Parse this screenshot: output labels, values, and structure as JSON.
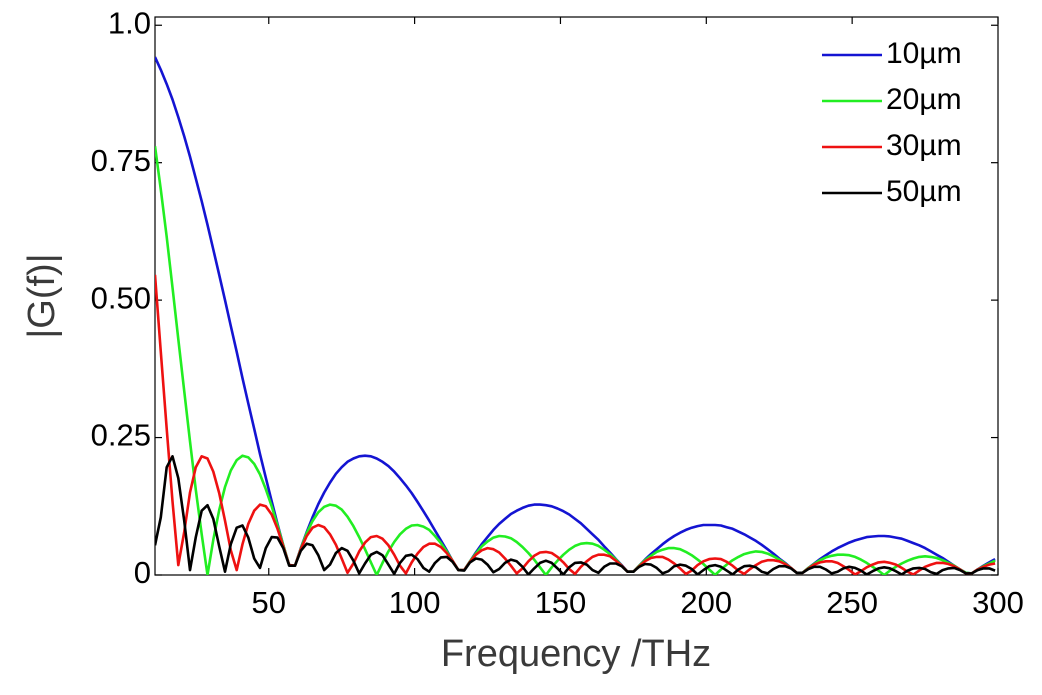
{
  "chart_data": {
    "type": "line",
    "xlabel": "Frequency /THz",
    "ylabel": "|G(f)|",
    "xlim": [
      11,
      300
    ],
    "ylim": [
      0,
      1.015
    ],
    "xticks": [
      50,
      100,
      150,
      200,
      250,
      300
    ],
    "yticks": [
      0,
      0.25,
      {
        "value": 0.5,
        "label": "0.50"
      },
      0.75,
      {
        "value": 1,
        "label": "1.0"
      }
    ],
    "legend": "upper right",
    "x": [
      11,
      13,
      15,
      17,
      19,
      21,
      23,
      25,
      27,
      29,
      31,
      33,
      35,
      37,
      39,
      41,
      43,
      45,
      47,
      49,
      51,
      53,
      55,
      57,
      59,
      61,
      63,
      65,
      67,
      69,
      71,
      73,
      75,
      77,
      79,
      81,
      83,
      85,
      87,
      89,
      91,
      93,
      95,
      97,
      99,
      101,
      103,
      105,
      107,
      109,
      111,
      113,
      115,
      117,
      119,
      121,
      123,
      125,
      127,
      129,
      131,
      133,
      135,
      137,
      139,
      141,
      143,
      145,
      147,
      149,
      151,
      153,
      155,
      157,
      159,
      161,
      163,
      165,
      167,
      169,
      171,
      173,
      175,
      177,
      179,
      181,
      183,
      185,
      187,
      189,
      191,
      193,
      195,
      197,
      199,
      201,
      203,
      205,
      207,
      209,
      211,
      213,
      215,
      217,
      219,
      221,
      223,
      225,
      227,
      229,
      231,
      233,
      235,
      237,
      239,
      241,
      243,
      245,
      247,
      249,
      251,
      253,
      255,
      257,
      259,
      261,
      263,
      265,
      267,
      269,
      271,
      273,
      275,
      277,
      279,
      281,
      283,
      285,
      287,
      289,
      291,
      293,
      295,
      297,
      299
    ],
    "series": [
      {
        "name": "10µm",
        "color": "#1414d2",
        "values": [
          0.942,
          0.919,
          0.893,
          0.865,
          0.833,
          0.798,
          0.761,
          0.721,
          0.68,
          0.637,
          0.592,
          0.546,
          0.5,
          0.453,
          0.406,
          0.358,
          0.312,
          0.266,
          0.22,
          0.177,
          0.134,
          0.093,
          0.054,
          0.018,
          0.017,
          0.049,
          0.078,
          0.105,
          0.129,
          0.15,
          0.168,
          0.184,
          0.196,
          0.206,
          0.212,
          0.216,
          0.217,
          0.216,
          0.212,
          0.206,
          0.198,
          0.188,
          0.176,
          0.163,
          0.149,
          0.133,
          0.116,
          0.099,
          0.081,
          0.063,
          0.045,
          0.026,
          0.009,
          0.009,
          0.025,
          0.041,
          0.056,
          0.069,
          0.082,
          0.093,
          0.102,
          0.111,
          0.117,
          0.122,
          0.126,
          0.128,
          0.128,
          0.127,
          0.125,
          0.121,
          0.116,
          0.11,
          0.102,
          0.094,
          0.084,
          0.074,
          0.064,
          0.052,
          0.041,
          0.029,
          0.018,
          0.006,
          0.006,
          0.017,
          0.028,
          0.038,
          0.047,
          0.056,
          0.064,
          0.071,
          0.077,
          0.082,
          0.086,
          0.089,
          0.091,
          0.091,
          0.091,
          0.09,
          0.087,
          0.084,
          0.079,
          0.074,
          0.068,
          0.062,
          0.055,
          0.047,
          0.039,
          0.03,
          0.022,
          0.013,
          0.004,
          0.004,
          0.013,
          0.021,
          0.029,
          0.036,
          0.043,
          0.049,
          0.054,
          0.059,
          0.063,
          0.066,
          0.069,
          0.07,
          0.071,
          0.071,
          0.07,
          0.068,
          0.066,
          0.062,
          0.058,
          0.054,
          0.049,
          0.043,
          0.037,
          0.031,
          0.024,
          0.017,
          0.01,
          0.004,
          0.003,
          0.01,
          0.017,
          0.023,
          0.029
        ]
      },
      {
        "name": "20µm",
        "color": "#22ee22",
        "values": [
          0.78,
          0.701,
          0.615,
          0.523,
          0.429,
          0.335,
          0.243,
          0.155,
          0.074,
          0,
          0.064,
          0.118,
          0.16,
          0.19,
          0.209,
          0.217,
          0.214,
          0.202,
          0.183,
          0.156,
          0.125,
          0.09,
          0.054,
          0.018,
          0.017,
          0.048,
          0.076,
          0.098,
          0.114,
          0.124,
          0.128,
          0.126,
          0.119,
          0.106,
          0.089,
          0.069,
          0.047,
          0.023,
          0,
          0.022,
          0.043,
          0.06,
          0.074,
          0.084,
          0.09,
          0.091,
          0.088,
          0.082,
          0.071,
          0.058,
          0.043,
          0.026,
          0.009,
          0.009,
          0.025,
          0.039,
          0.052,
          0.061,
          0.068,
          0.071,
          0.07,
          0.067,
          0.06,
          0.051,
          0.04,
          0.028,
          0.014,
          0,
          0.014,
          0.026,
          0.037,
          0.046,
          0.053,
          0.057,
          0.058,
          0.057,
          0.053,
          0.046,
          0.038,
          0.028,
          0.017,
          0.006,
          0.006,
          0.017,
          0.027,
          0.035,
          0.042,
          0.046,
          0.049,
          0.049,
          0.047,
          0.042,
          0.036,
          0.028,
          0.02,
          0.01,
          0,
          0.01,
          0.019,
          0.027,
          0.033,
          0.038,
          0.041,
          0.043,
          0.042,
          0.039,
          0.034,
          0.028,
          0.021,
          0.013,
          0.004,
          0.004,
          0.013,
          0.02,
          0.027,
          0.032,
          0.035,
          0.037,
          0.037,
          0.036,
          0.033,
          0.028,
          0.022,
          0.015,
          0.008,
          0,
          0.008,
          0.015,
          0.021,
          0.026,
          0.03,
          0.033,
          0.034,
          0.033,
          0.031,
          0.027,
          0.022,
          0.017,
          0.01,
          0.004,
          0.003,
          0.01,
          0.016,
          0.021,
          0.026
        ]
      },
      {
        "name": "30µm",
        "color": "#ee1111",
        "values": [
          0.546,
          0.406,
          0.266,
          0.134,
          0.018,
          0.078,
          0.15,
          0.196,
          0.216,
          0.212,
          0.188,
          0.149,
          0.099,
          0.045,
          0.009,
          0.056,
          0.093,
          0.117,
          0.128,
          0.125,
          0.11,
          0.084,
          0.052,
          0.018,
          0.017,
          0.047,
          0.071,
          0.086,
          0.091,
          0.087,
          0.074,
          0.055,
          0.03,
          0.004,
          0.021,
          0.043,
          0.059,
          0.069,
          0.071,
          0.066,
          0.054,
          0.037,
          0.017,
          0.003,
          0.023,
          0.039,
          0.051,
          0.057,
          0.057,
          0.051,
          0.04,
          0.026,
          0.009,
          0.009,
          0.024,
          0.037,
          0.045,
          0.049,
          0.047,
          0.041,
          0.03,
          0.017,
          0.003,
          0.012,
          0.025,
          0.035,
          0.041,
          0.042,
          0.04,
          0.033,
          0.023,
          0.011,
          0.002,
          0.015,
          0.025,
          0.033,
          0.037,
          0.037,
          0.034,
          0.026,
          0.017,
          0.006,
          0.006,
          0.016,
          0.025,
          0.031,
          0.033,
          0.033,
          0.028,
          0.021,
          0.012,
          0.002,
          0.008,
          0.018,
          0.025,
          0.029,
          0.03,
          0.029,
          0.024,
          0.017,
          0.008,
          0.002,
          0.011,
          0.018,
          0.024,
          0.027,
          0.027,
          0.025,
          0.02,
          0.013,
          0.004,
          0.004,
          0.012,
          0.019,
          0.023,
          0.025,
          0.025,
          0.022,
          0.016,
          0.009,
          0.001,
          0.007,
          0.014,
          0.019,
          0.023,
          0.024,
          0.022,
          0.019,
          0.013,
          0.006,
          0.001,
          0.008,
          0.015,
          0.019,
          0.022,
          0.022,
          0.02,
          0.016,
          0.01,
          0.003,
          0.003,
          0.01,
          0.015,
          0.019,
          0.021
        ]
      },
      {
        "name": "50µm",
        "color": "#000000",
        "values": [
          0.054,
          0.105,
          0.196,
          0.216,
          0.176,
          0.099,
          0.009,
          0.069,
          0.117,
          0.127,
          0.102,
          0.052,
          0.006,
          0.056,
          0.086,
          0.09,
          0.068,
          0.03,
          0.013,
          0.049,
          0.069,
          0.068,
          0.049,
          0.017,
          0.017,
          0.044,
          0.057,
          0.054,
          0.036,
          0.009,
          0.019,
          0.04,
          0.049,
          0.044,
          0.026,
          0.003,
          0.021,
          0.037,
          0.042,
          0.036,
          0.019,
          0.002,
          0.022,
          0.035,
          0.037,
          0.029,
          0.013,
          0.006,
          0.022,
          0.032,
          0.033,
          0.024,
          0.009,
          0.008,
          0.023,
          0.03,
          0.028,
          0.019,
          0.005,
          0.011,
          0.022,
          0.028,
          0.025,
          0.015,
          0.001,
          0.012,
          0.022,
          0.026,
          0.022,
          0.012,
          0.001,
          0.014,
          0.022,
          0.023,
          0.019,
          0.009,
          0.004,
          0.015,
          0.021,
          0.021,
          0.016,
          0.006,
          0.006,
          0.015,
          0.02,
          0.019,
          0.013,
          0.003,
          0.007,
          0.016,
          0.019,
          0.017,
          0.011,
          0.001,
          0.009,
          0.016,
          0.018,
          0.015,
          0.008,
          0.001,
          0.01,
          0.016,
          0.017,
          0.014,
          0.006,
          0.003,
          0.011,
          0.016,
          0.016,
          0.012,
          0.004,
          0.004,
          0.011,
          0.015,
          0.015,
          0.01,
          0.003,
          0.006,
          0.012,
          0.015,
          0.013,
          0.008,
          0.001,
          0.007,
          0.012,
          0.014,
          0.012,
          0.007,
          0.001,
          0.008,
          0.012,
          0.013,
          0.011,
          0.005,
          0.002,
          0.009,
          0.012,
          0.013,
          0.009,
          0.003,
          0.003,
          0.009,
          0.012,
          0.012,
          0.008
        ]
      }
    ]
  }
}
